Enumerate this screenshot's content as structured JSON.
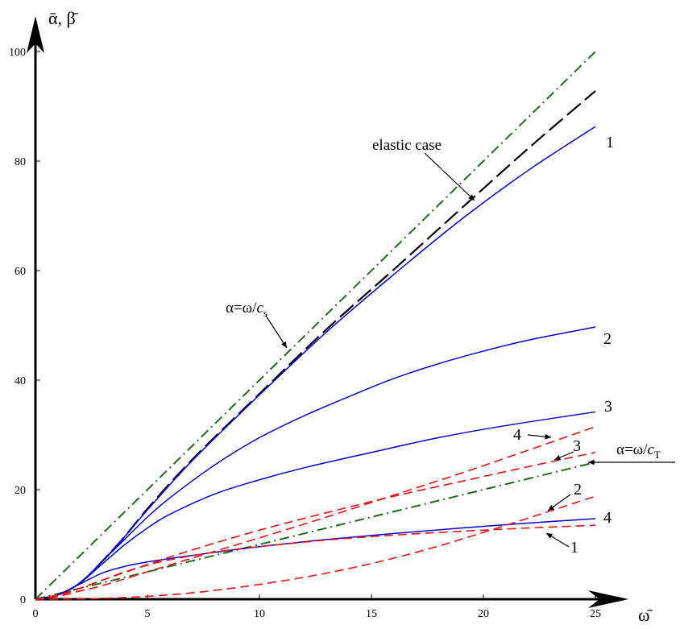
{
  "chart_data": {
    "type": "line",
    "xlabel": "ω̄",
    "ylabel": "ᾱ, β̄",
    "xlim": [
      0,
      25
    ],
    "ylim": [
      0,
      100
    ],
    "xticks": [
      0,
      5,
      10,
      15,
      20,
      25
    ],
    "yticks": [
      0,
      20,
      40,
      60,
      80,
      100
    ],
    "grid": false,
    "colors": {
      "alpha": "#0000dd",
      "beta": "#ee1111",
      "reference": "#1a6e1a",
      "elastic": "#000000"
    },
    "series": [
      {
        "name": "α=ω/c_s",
        "style": "dash-dot",
        "color": "#1a6e1a",
        "x": [
          0,
          25
        ],
        "y": [
          0,
          100
        ]
      },
      {
        "name": "α=ω/c_T",
        "style": "dash-dot",
        "color": "#1a6e1a",
        "x": [
          0,
          25
        ],
        "y": [
          0,
          25
        ]
      },
      {
        "name": "elastic case",
        "style": "long-dash",
        "color": "#000000",
        "x": [
          0,
          1,
          2,
          3,
          4,
          5,
          7,
          10,
          13,
          16,
          19,
          22,
          25
        ],
        "y": [
          0,
          0.8,
          3,
          7,
          11.5,
          16.5,
          25.5,
          37.5,
          49.3,
          60.2,
          71.3,
          82.3,
          92.8
        ]
      },
      {
        "name": "1",
        "style": "solid",
        "color": "#0000dd",
        "x": [
          0,
          1,
          2,
          3,
          4,
          5,
          7,
          10,
          13,
          16,
          19,
          22,
          25
        ],
        "y": [
          0,
          0.8,
          3,
          7,
          11.5,
          16.3,
          25.3,
          37.3,
          48.8,
          59.3,
          69.3,
          78.3,
          86.3
        ]
      },
      {
        "name": "2",
        "style": "solid",
        "color": "#0000dd",
        "x": [
          0,
          1,
          2,
          3,
          4,
          5,
          6,
          8,
          10,
          12,
          14,
          16,
          18,
          20,
          22,
          25
        ],
        "y": [
          0,
          0.8,
          3,
          7,
          11,
          15,
          18.5,
          24.5,
          29.5,
          33.5,
          37,
          40.3,
          43,
          45.3,
          47.3,
          49.7
        ]
      },
      {
        "name": "3",
        "style": "solid",
        "color": "#0000dd",
        "x": [
          0,
          1,
          2,
          3,
          4,
          5,
          6,
          8,
          10,
          12,
          15,
          18,
          21,
          25
        ],
        "y": [
          0,
          0.8,
          3,
          6.5,
          10,
          13,
          15.5,
          19.2,
          21.8,
          24,
          26.8,
          29.5,
          31.7,
          34.2
        ]
      },
      {
        "name": "4",
        "style": "solid",
        "color": "#0000dd",
        "x": [
          0,
          1,
          2,
          3,
          4,
          5,
          7,
          10,
          13,
          16,
          19,
          22,
          25
        ],
        "y": [
          0,
          0.8,
          2.8,
          4.8,
          6,
          6.8,
          8,
          9.6,
          10.9,
          12,
          13,
          13.9,
          14.7
        ]
      },
      {
        "name": "4",
        "style": "dashed",
        "color": "#ee1111",
        "x": [
          0,
          1,
          2,
          3,
          5,
          7,
          10,
          13,
          16,
          19,
          22,
          25
        ],
        "y": [
          0,
          0.5,
          1.5,
          2.5,
          5,
          7.5,
          11.2,
          15,
          19,
          23,
          27.2,
          31.5
        ]
      },
      {
        "name": "3",
        "style": "dashed",
        "color": "#ee1111",
        "x": [
          0,
          1,
          2,
          3,
          5,
          7,
          10,
          13,
          16,
          19,
          22,
          25
        ],
        "y": [
          0,
          0.6,
          2,
          3.5,
          6.3,
          9,
          12.6,
          15.8,
          18.8,
          21.5,
          24.2,
          26.8
        ]
      },
      {
        "name": "2",
        "style": "dashed",
        "color": "#ee1111",
        "x": [
          0,
          2,
          4,
          6,
          8,
          10,
          12,
          14,
          16,
          18,
          20,
          22,
          25
        ],
        "y": [
          0,
          0.05,
          0.3,
          0.8,
          1.6,
          2.7,
          4,
          5.6,
          7.5,
          9.7,
          12.2,
          14.8,
          18.8
        ]
      },
      {
        "name": "1",
        "style": "dashed",
        "color": "#ee1111",
        "x": [
          0,
          1,
          2,
          3,
          4,
          5,
          6,
          8,
          10,
          13,
          16,
          19,
          22,
          25
        ],
        "y": [
          0,
          0.8,
          2,
          3.5,
          5,
          6.2,
          7.2,
          8.6,
          9.6,
          10.8,
          11.7,
          12.4,
          13,
          13.5
        ]
      }
    ],
    "annotations": {
      "elastic": "elastic case",
      "cs_prefix": "α=ω/",
      "cs_var": "c",
      "cs_sub": "s",
      "ct_prefix": "α=ω/",
      "ct_var": "c",
      "ct_sub": "T"
    }
  }
}
